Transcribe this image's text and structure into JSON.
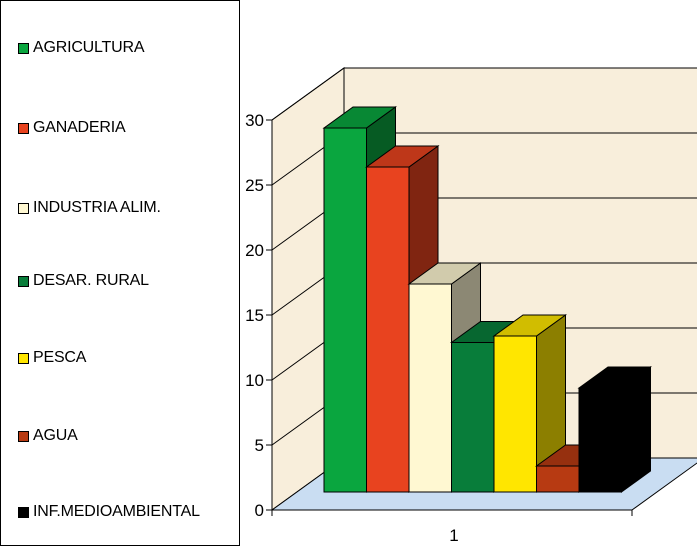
{
  "chart_data": {
    "type": "bar",
    "style": "3d-clustered",
    "categories": [
      "1"
    ],
    "series": [
      {
        "name": "AGRICULTURA",
        "color": "#0aa63f",
        "values": [
          28
        ]
      },
      {
        "name": "GANADERIA",
        "color": "#e8431f",
        "values": [
          25
        ]
      },
      {
        "name": "INDUSTRIA ALIM.",
        "color": "#fff8d2",
        "values": [
          16
        ]
      },
      {
        "name": "DESAR. RURAL",
        "color": "#087d3a",
        "values": [
          11.5
        ]
      },
      {
        "name": "PESCA",
        "color": "#ffe600",
        "values": [
          12
        ]
      },
      {
        "name": "AGUA",
        "color": "#b73a12",
        "values": [
          2
        ]
      },
      {
        "name": "INF.MEDIOAMBIENTAL",
        "color": "#000000",
        "values": [
          8
        ]
      }
    ],
    "ylim": [
      0,
      30
    ],
    "yticks": [
      "0",
      "5",
      "10",
      "15",
      "20",
      "25",
      "30"
    ],
    "grid": true,
    "legend_position": "left",
    "wall_color": "#f8eedb",
    "floor_color": "#c9ddf2"
  }
}
